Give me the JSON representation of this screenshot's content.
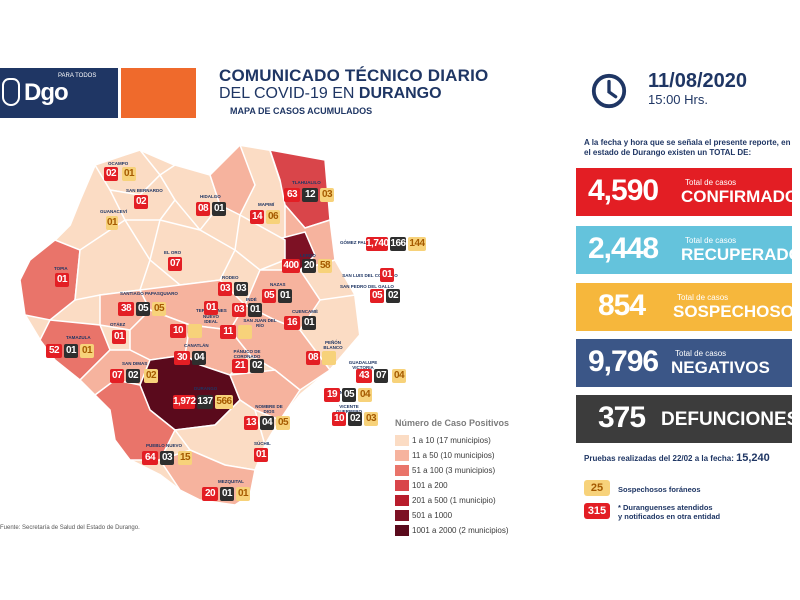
{
  "header": {
    "logo_small": "PARA TODOS",
    "logo_text": "Dgo",
    "title_line1": "COMUNICADO TÉCNICO DIARIO",
    "title_line2_prefix": "DEL COVID-19 EN",
    "title_line2_bold": "DURANGO",
    "subtitle": "MAPA DE CASOS ACUMULADOS",
    "date": "11/08/2020",
    "time": "15:00 Hrs.",
    "intro": "A la fecha y hora que se señala el presente reporte, en el estado de Durango existen un TOTAL DE:"
  },
  "stats": {
    "confirmados": {
      "value": "4,590",
      "small": "Total de casos",
      "label": "CONFIRMADOS",
      "color": "#e31e24"
    },
    "recuperados": {
      "value": "2,448",
      "small": "Total de casos",
      "label": "RECUPERADOS",
      "color": "#64c3dc"
    },
    "sospechosos": {
      "value": "854",
      "small": "Total de casos",
      "label": "SOSPECHOSOS",
      "color": "#f6b73c"
    },
    "negativos": {
      "value": "9,796",
      "small": "Total de casos",
      "label": "NEGATIVOS",
      "color": "#3b5687"
    },
    "defunciones": {
      "value": "375",
      "label": "DEFUNCIONES",
      "color": "#3c3c3c"
    }
  },
  "pruebas": {
    "label": "Pruebas realizadas del 22/02 a la fecha:",
    "value": "15,240"
  },
  "side_legend": {
    "yellow_value": "25",
    "yellow_text": "Sospechosos foráneos",
    "red_value": "315",
    "red_text_1": "* Duranguenses atendidos",
    "red_text_2": "y notificados en otra entidad"
  },
  "map_legend": {
    "title": "Número de Caso Positivos",
    "items": [
      {
        "range": "1 a 10",
        "count": "(17 municipios)",
        "color": "#fbdcc4"
      },
      {
        "range": "11 a 50",
        "count": "(10 municipios)",
        "color": "#f6b39e"
      },
      {
        "range": "51 a 100",
        "count": "(3 municipios)",
        "color": "#e9746a"
      },
      {
        "range": "101 a 200",
        "count": "",
        "color": "#d9454a"
      },
      {
        "range": "201 a 500",
        "count": "(1 municipio)",
        "color": "#b81d2c"
      },
      {
        "range": "501 a 1000",
        "count": "",
        "color": "#7d1124"
      },
      {
        "range": "1001 a 2000",
        "count": "(2 municipios)",
        "color": "#5a0a1c"
      }
    ]
  },
  "source": "Fuente: Secretaría de Salud del Estado de Durango.",
  "municipios": [
    {
      "name": "OCAMPO",
      "r": "02",
      "d": "",
      "y": "01"
    },
    {
      "name": "SAN BERNARDO",
      "r": "02",
      "d": "",
      "y": ""
    },
    {
      "name": "TLAHUALILO",
      "r": "63",
      "d": "12",
      "y": "03"
    },
    {
      "name": "HIDALGO",
      "r": "08",
      "d": "01",
      "y": ""
    },
    {
      "name": "MAPIMÍ",
      "r": "14",
      "d": "",
      "y": "06"
    },
    {
      "name": "GUANACEVÍ",
      "r": "",
      "d": "",
      "y": "01"
    },
    {
      "name": "GÓMEZ PALACIO",
      "r": "1,740",
      "d": "166",
      "y": "144"
    },
    {
      "name": "LERDO",
      "r": "400",
      "d": "20",
      "y": "58"
    },
    {
      "name": "EL ORO",
      "r": "07",
      "d": "",
      "y": ""
    },
    {
      "name": "TOPIA",
      "r": "01",
      "d": "",
      "y": ""
    },
    {
      "name": "SAN LUIS DEL CORDERO",
      "r": "01",
      "d": "",
      "y": ""
    },
    {
      "name": "SAN PEDRO DEL GALLO",
      "r": "05",
      "d": "02",
      "y": ""
    },
    {
      "name": "RODEO",
      "r": "03",
      "d": "03",
      "y": ""
    },
    {
      "name": "NAZAS",
      "r": "05",
      "d": "01",
      "y": ""
    },
    {
      "name": "SANTIAGO PAPASQUIARO",
      "r": "38",
      "d": "05",
      "y": "05"
    },
    {
      "name": "INDÉ",
      "r": "03",
      "d": "01",
      "y": ""
    },
    {
      "name": "CUENCAMÉ",
      "r": "16",
      "d": "01",
      "y": ""
    },
    {
      "name": "OTÁEZ",
      "r": "01",
      "d": "",
      "y": ""
    },
    {
      "name": "TEPEHUANES",
      "r": "01",
      "d": "",
      "y": ""
    },
    {
      "name": "NUEVO IDEAL",
      "r": "10",
      "d": "02",
      "y": ""
    },
    {
      "name": "SAN JUAN DEL RÍO",
      "r": "11",
      "d": "03",
      "y": ""
    },
    {
      "name": "TAMAZULA",
      "r": "52",
      "d": "01",
      "y": "01"
    },
    {
      "name": "CANATLÁN",
      "r": "30",
      "d": "04",
      "y": ""
    },
    {
      "name": "PEÑÓN BLANCO",
      "r": "08",
      "d": "04",
      "y": ""
    },
    {
      "name": "SAN DIMAS",
      "r": "07",
      "d": "02",
      "y": "02"
    },
    {
      "name": "GUADALUPE VICTORIA",
      "r": "43",
      "d": "07",
      "y": "04"
    },
    {
      "name": "PÁNUCO DE CORONADO",
      "r": "21",
      "d": "02",
      "y": ""
    },
    {
      "name": "DURANGO",
      "r": "1,972",
      "d": "137",
      "y": "566"
    },
    {
      "name": "POANAS",
      "r": "19",
      "d": "05",
      "y": "04"
    },
    {
      "name": "NOMBRE DE DIOS",
      "r": "13",
      "d": "04",
      "y": "05"
    },
    {
      "name": "VICENTE GUERRERO",
      "r": "10",
      "d": "02",
      "y": "03"
    },
    {
      "name": "PUEBLO NUEVO",
      "r": "64",
      "d": "03",
      "y": "15"
    },
    {
      "name": "SÚCHIL",
      "r": "01",
      "d": "",
      "y": ""
    },
    {
      "name": "MEZQUITAL",
      "r": "20",
      "d": "01",
      "y": "01"
    }
  ]
}
